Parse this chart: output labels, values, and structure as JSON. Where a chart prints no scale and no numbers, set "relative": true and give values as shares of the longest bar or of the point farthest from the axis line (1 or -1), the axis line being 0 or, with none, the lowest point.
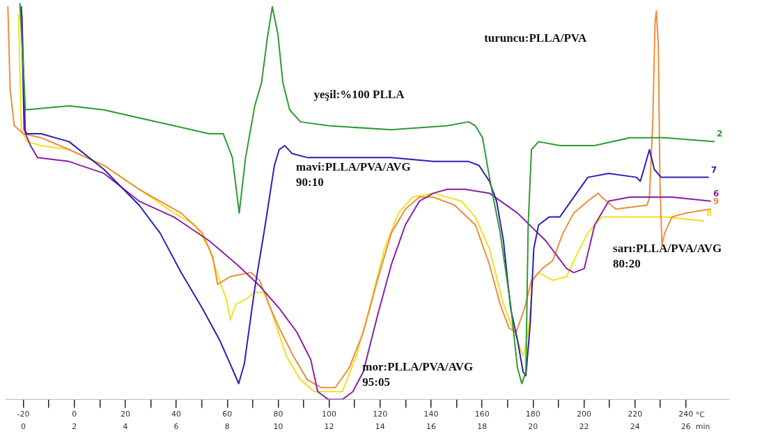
{
  "chart_data": {
    "type": "line",
    "relative": true,
    "xlabel": "min",
    "x2label": "°C",
    "xlim": [
      -0.7,
      27.7
    ],
    "x2lim": [
      -27,
      257
    ],
    "xticks": [
      0,
      2,
      4,
      6,
      8,
      10,
      12,
      14,
      16,
      18,
      20,
      22,
      24,
      26
    ],
    "x2ticks": [
      -20,
      {
        "value": -10,
        "label": null
      },
      0,
      {
        "value": 10,
        "label": null
      },
      20,
      {
        "value": 30,
        "label": null
      },
      40,
      {
        "value": 50,
        "label": null
      },
      60,
      {
        "value": 70,
        "label": null
      },
      80,
      {
        "value": 90,
        "label": null
      },
      100,
      {
        "value": 110,
        "label": null
      },
      120,
      {
        "value": 130,
        "label": null
      },
      140,
      {
        "value": 150,
        "label": null
      },
      160,
      {
        "value": 170,
        "label": null
      },
      180,
      {
        "value": 190,
        "label": null
      },
      200,
      {
        "value": 210,
        "label": null
      },
      220,
      {
        "value": 230,
        "label": null
      },
      240
    ],
    "grid": false,
    "legend": false,
    "series": [
      {
        "name": "2",
        "color": "#2e9a2e",
        "x": [
          -0.14,
          0.08,
          1.79,
          3.16,
          4.54,
          5.91,
          7.29,
          7.84,
          8.2,
          8.47,
          8.72,
          9.08,
          9.35,
          9.57,
          9.77,
          9.99,
          10.18,
          10.45,
          10.87,
          11.97,
          14.44,
          16.64,
          17.47,
          17.74,
          18.02,
          18.29,
          18.71,
          19.12,
          19.39,
          19.56,
          19.72,
          19.81,
          19.94,
          20.22,
          21.05,
          22.42,
          23.8,
          25.17,
          27.1
        ],
        "values": [
          1.0,
          0.73,
          0.74,
          0.73,
          0.71,
          0.69,
          0.67,
          0.67,
          0.61,
          0.47,
          0.61,
          0.74,
          0.8,
          0.91,
          0.99,
          0.92,
          0.8,
          0.73,
          0.7,
          0.69,
          0.68,
          0.69,
          0.7,
          0.69,
          0.66,
          0.56,
          0.42,
          0.24,
          0.08,
          0.04,
          0.07,
          0.44,
          0.63,
          0.65,
          0.64,
          0.64,
          0.66,
          0.66,
          0.65
        ]
      },
      {
        "name": "7",
        "color": "#2b1fb5",
        "x": [
          -0.08,
          0.03,
          0.14,
          0.69,
          1.79,
          3.16,
          4.54,
          5.36,
          6.19,
          7.02,
          7.7,
          8.25,
          8.45,
          8.67,
          9.08,
          9.49,
          9.85,
          10.04,
          10.26,
          10.54,
          11.14,
          12.79,
          14.44,
          16.09,
          17.47,
          17.88,
          18.29,
          18.57,
          18.84,
          19.12,
          19.39,
          19.61,
          19.72,
          19.89,
          20.03,
          20.22,
          20.63,
          21.05,
          21.6,
          22.15,
          22.97,
          24.07,
          24.21,
          24.35,
          24.57,
          24.76,
          25.03,
          26.55,
          26.88
        ],
        "values": [
          0.99,
          0.68,
          0.67,
          0.67,
          0.65,
          0.58,
          0.49,
          0.42,
          0.32,
          0.23,
          0.15,
          0.07,
          0.04,
          0.09,
          0.28,
          0.44,
          0.59,
          0.63,
          0.64,
          0.62,
          0.61,
          0.61,
          0.61,
          0.6,
          0.6,
          0.59,
          0.55,
          0.5,
          0.4,
          0.23,
          0.15,
          0.07,
          0.06,
          0.19,
          0.38,
          0.44,
          0.46,
          0.46,
          0.51,
          0.56,
          0.57,
          0.56,
          0.55,
          0.58,
          0.63,
          0.58,
          0.56,
          0.56,
          0.56
        ]
      },
      {
        "name": "6",
        "color": "#8a1fa8",
        "x": [
          -0.06,
          0.08,
          0.28,
          0.55,
          1.79,
          3.16,
          4.54,
          5.91,
          7.29,
          8.39,
          9.22,
          10.04,
          10.73,
          11.28,
          11.55,
          11.97,
          12.52,
          12.93,
          13.34,
          13.89,
          14.44,
          14.99,
          15.54,
          16.09,
          16.64,
          17.33,
          18.29,
          19.39,
          20.5,
          21.32,
          21.6,
          22.01,
          22.42,
          22.97,
          23.8,
          25.45,
          26.96
        ],
        "values": [
          0.97,
          0.67,
          0.64,
          0.61,
          0.6,
          0.57,
          0.5,
          0.46,
          0.4,
          0.34,
          0.29,
          0.23,
          0.17,
          0.1,
          0.02,
          0.0,
          0,
          0.02,
          0.07,
          0.21,
          0.34,
          0.44,
          0.5,
          0.52,
          0.53,
          0.53,
          0.52,
          0.47,
          0.4,
          0.33,
          0.32,
          0.33,
          0.44,
          0.5,
          0.51,
          0.51,
          0.5
        ]
      },
      {
        "name": "9",
        "color": "#f08c3a",
        "x": [
          -0.61,
          -0.52,
          -0.36,
          0,
          0.69,
          1.79,
          3.16,
          4.54,
          5.36,
          6.19,
          7.02,
          7.43,
          7.62,
          8.12,
          8.94,
          9.27,
          9.63,
          10.04,
          10.59,
          11.14,
          11.69,
          12.24,
          12.79,
          13.34,
          13.89,
          14.44,
          14.99,
          15.54,
          16.09,
          16.92,
          17.74,
          18.29,
          18.71,
          19.06,
          19.34,
          19.67,
          19.94,
          20.36,
          20.77,
          21.18,
          21.6,
          22.15,
          22.56,
          22.7,
          23.25,
          24.48,
          24.57,
          24.7,
          24.79,
          24.84,
          24.92,
          24.98,
          25.06,
          25.17,
          25.45,
          25.99,
          26.96
        ],
        "values": [
          0.99,
          0.78,
          0.69,
          0.67,
          0.66,
          0.63,
          0.59,
          0.53,
          0.5,
          0.47,
          0.42,
          0.36,
          0.29,
          0.31,
          0.32,
          0.3,
          0.24,
          0.18,
          0.11,
          0.05,
          0.03,
          0.03,
          0.08,
          0.17,
          0.3,
          0.42,
          0.48,
          0.51,
          0.51,
          0.49,
          0.44,
          0.34,
          0.24,
          0.18,
          0.17,
          0.23,
          0.3,
          0.33,
          0.35,
          0.42,
          0.47,
          0.5,
          0.52,
          0.51,
          0.48,
          0.49,
          0.51,
          0.7,
          0.95,
          0.98,
          0.89,
          0.55,
          0.39,
          0.42,
          0.46,
          0.47,
          0.48
        ]
      },
      {
        "name": "8",
        "color": "#f2e01f",
        "x": [
          -0.19,
          -0.08,
          0.14,
          0.69,
          1.79,
          3.16,
          4.54,
          5.91,
          6.74,
          7.29,
          7.7,
          7.98,
          8.12,
          8.34,
          8.67,
          9.08,
          9.49,
          9.9,
          10.32,
          10.87,
          11.42,
          11.97,
          12.52,
          13.07,
          13.62,
          14.17,
          14.72,
          15.27,
          16.09,
          17.19,
          17.74,
          18.29,
          18.84,
          19.26,
          19.61,
          19.81,
          20.0,
          20.22,
          20.77,
          21.32,
          21.6,
          22.15,
          22.7,
          23.25,
          25.17,
          26.69
        ],
        "values": [
          0.97,
          0.68,
          0.65,
          0.64,
          0.63,
          0.59,
          0.53,
          0.47,
          0.44,
          0.38,
          0.3,
          0.25,
          0.2,
          0.24,
          0.25,
          0.27,
          0.27,
          0.19,
          0.11,
          0.05,
          0.02,
          0.02,
          0.02,
          0.11,
          0.24,
          0.38,
          0.47,
          0.51,
          0.52,
          0.5,
          0.46,
          0.38,
          0.24,
          0.17,
          0.11,
          0.17,
          0.3,
          0.32,
          0.3,
          0.31,
          0.35,
          0.42,
          0.46,
          0.46,
          0.46,
          0.45
        ]
      }
    ],
    "annotations": [
      "yeşil:%100 PLLA",
      "mavi:PLLA/PVA/AVG\n90:10",
      "mor:PLLA/PVA/AVG\n95:05",
      "turuncu:PLLA/PVA",
      "sarı:PLLA/PVA/AVG\n80:20"
    ]
  }
}
